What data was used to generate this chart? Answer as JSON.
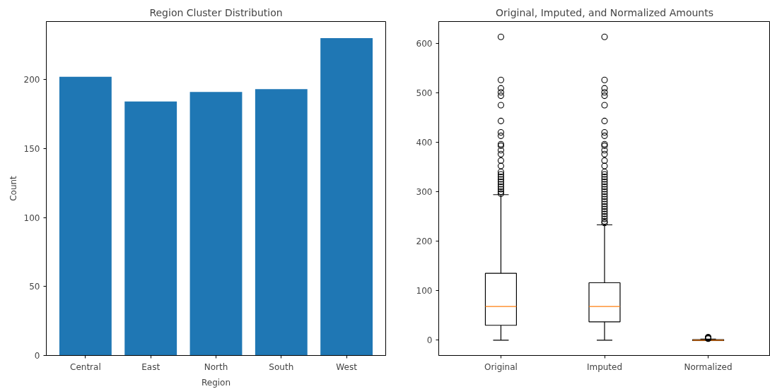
{
  "chart_data": [
    {
      "type": "bar",
      "title": "Region Cluster Distribution",
      "xlabel": "Region",
      "ylabel": "Count",
      "categories": [
        "Central",
        "East",
        "North",
        "South",
        "West"
      ],
      "values": [
        202,
        184,
        191,
        193,
        230
      ],
      "color": "#1f77b4",
      "ylim": [
        0,
        242
      ],
      "yticks": [
        0,
        50,
        100,
        150,
        200
      ]
    },
    {
      "type": "box",
      "title": "Original, Imputed, and Normalized Amounts",
      "categories": [
        "Original",
        "Imputed",
        "Normalized"
      ],
      "ylim": [
        -31,
        644
      ],
      "yticks": [
        0,
        100,
        200,
        300,
        400,
        500,
        600
      ],
      "marker": "circle",
      "boxes": [
        {
          "low": 0,
          "q1": 30,
          "median": 68,
          "q3": 135,
          "high": 294,
          "outliers": [
            296,
            300,
            305,
            310,
            315,
            320,
            325,
            330,
            335,
            340,
            352,
            363,
            376,
            384,
            393,
            396,
            413,
            420,
            443,
            475,
            494,
            501,
            509,
            526,
            613
          ]
        },
        {
          "low": 0,
          "q1": 37,
          "median": 68,
          "q3": 116,
          "high": 233,
          "outliers": [
            237,
            240,
            245,
            250,
            255,
            260,
            265,
            270,
            275,
            280,
            285,
            290,
            295,
            300,
            305,
            310,
            315,
            320,
            325,
            330,
            335,
            340,
            352,
            363,
            376,
            384,
            393,
            396,
            413,
            420,
            443,
            475,
            494,
            501,
            509,
            526,
            613
          ]
        },
        {
          "low": -1,
          "q1": -1,
          "median": 0,
          "q3": 1,
          "high": 2,
          "outliers": [
            3,
            4,
            5,
            6
          ]
        }
      ]
    }
  ]
}
